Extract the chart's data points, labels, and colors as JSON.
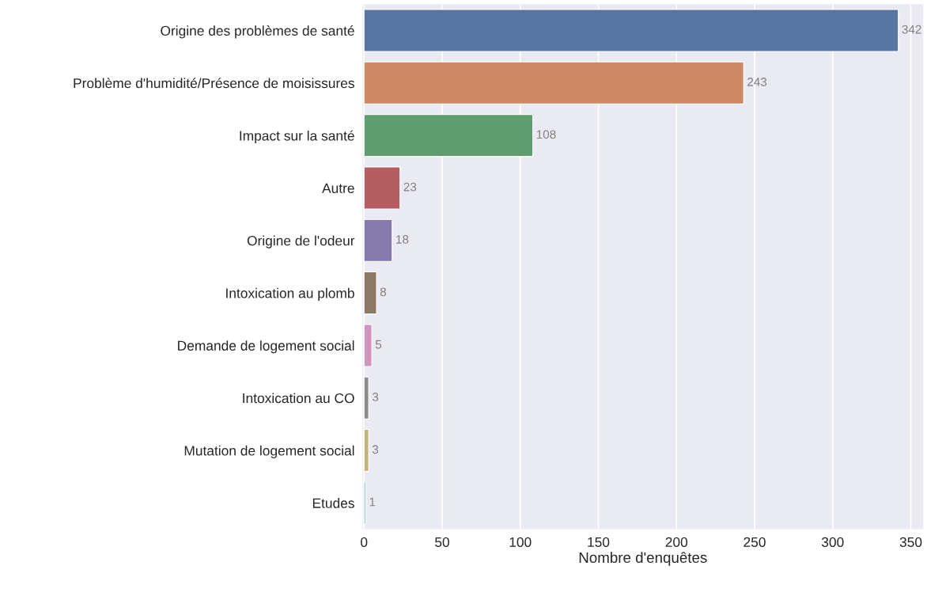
{
  "chart_data": {
    "type": "bar",
    "orientation": "horizontal",
    "xlabel": "Nombre d'enquêtes",
    "categories": [
      "Origine des problèmes de santé",
      "Problème d'humidité/Présence de moisissures",
      "Impact sur la santé",
      "Autre",
      "Origine de l'odeur",
      "Intoxication au plomb",
      "Demande de logement social",
      "Intoxication au CO",
      "Mutation de logement social",
      "Etudes"
    ],
    "values": [
      342,
      243,
      108,
      23,
      18,
      8,
      5,
      3,
      3,
      1
    ],
    "colors": [
      "#5975a4",
      "#cc8963",
      "#5f9e6e",
      "#b55d60",
      "#857aab",
      "#8d7866",
      "#d095bf",
      "#8c8c8c",
      "#c1b37f",
      "#71aec0"
    ],
    "xlim": [
      -1,
      358
    ],
    "xticks": [
      0,
      50,
      100,
      150,
      200,
      250,
      300,
      350
    ],
    "grid": "x",
    "data_labels": true
  }
}
